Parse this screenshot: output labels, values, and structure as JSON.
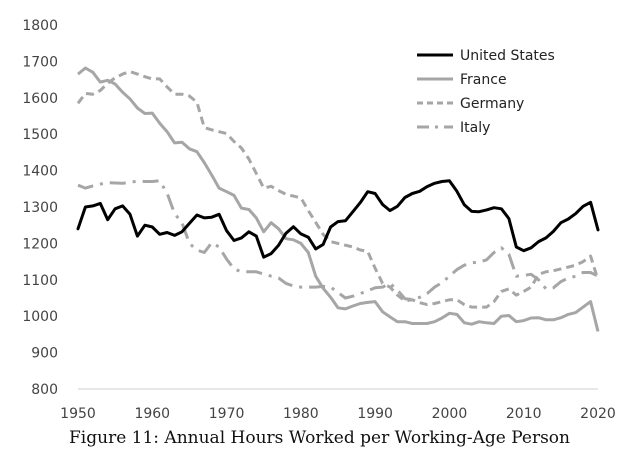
{
  "chart_data": {
    "type": "line",
    "title": "",
    "xlabel": "",
    "ylabel": "",
    "xlim": [
      1950,
      2020
    ],
    "ylim": [
      800,
      1800
    ],
    "xticks": [
      1950,
      1960,
      1970,
      1980,
      1990,
      2000,
      2010,
      2020
    ],
    "yticks": [
      800,
      900,
      1000,
      1100,
      1200,
      1300,
      1400,
      1500,
      1600,
      1700,
      1800
    ],
    "grid": false,
    "legend_position": "top-right",
    "x": [
      1950,
      1951,
      1952,
      1953,
      1954,
      1955,
      1956,
      1957,
      1958,
      1959,
      1960,
      1961,
      1962,
      1963,
      1964,
      1965,
      1966,
      1967,
      1968,
      1969,
      1970,
      1971,
      1972,
      1973,
      1974,
      1975,
      1976,
      1977,
      1978,
      1979,
      1980,
      1981,
      1982,
      1983,
      1984,
      1985,
      1986,
      1987,
      1988,
      1989,
      1990,
      1991,
      1992,
      1993,
      1994,
      1995,
      1996,
      1997,
      1998,
      1999,
      2000,
      2001,
      2002,
      2003,
      2004,
      2005,
      2006,
      2007,
      2008,
      2009,
      2010,
      2011,
      2012,
      2013,
      2014,
      2015,
      2016,
      2017,
      2018,
      2019,
      2020
    ],
    "series": [
      {
        "name": "United States",
        "color": "#000000",
        "dash": "solid",
        "values": [
          1240,
          1300,
          1303,
          1310,
          1265,
          1295,
          1303,
          1280,
          1220,
          1250,
          1245,
          1225,
          1230,
          1222,
          1232,
          1255,
          1278,
          1270,
          1272,
          1280,
          1235,
          1208,
          1215,
          1232,
          1220,
          1162,
          1172,
          1195,
          1228,
          1246,
          1226,
          1217,
          1185,
          1197,
          1245,
          1260,
          1262,
          1287,
          1312,
          1342,
          1337,
          1307,
          1290,
          1302,
          1326,
          1337,
          1343,
          1356,
          1365,
          1370,
          1372,
          1343,
          1306,
          1288,
          1287,
          1292,
          1298,
          1295,
          1268,
          1190,
          1180,
          1188,
          1205,
          1215,
          1233,
          1257,
          1267,
          1282,
          1302,
          1313,
          1237
        ]
      },
      {
        "name": "France",
        "color": "#a6a6a6",
        "dash": "solid",
        "values": [
          1665,
          1682,
          1670,
          1643,
          1648,
          1638,
          1615,
          1597,
          1572,
          1557,
          1558,
          1530,
          1507,
          1476,
          1478,
          1460,
          1452,
          1422,
          1388,
          1352,
          1342,
          1332,
          1297,
          1293,
          1270,
          1232,
          1257,
          1240,
          1213,
          1210,
          1200,
          1175,
          1110,
          1077,
          1052,
          1023,
          1020,
          1028,
          1035,
          1038,
          1040,
          1012,
          998,
          985,
          985,
          980,
          980,
          980,
          985,
          995,
          1008,
          1005,
          982,
          978,
          985,
          982,
          980,
          1000,
          1002,
          985,
          988,
          995,
          996,
          990,
          990,
          996,
          1005,
          1010,
          1025,
          1040,
          958
        ]
      },
      {
        "name": "Germany",
        "color": "#a6a6a6",
        "dash": "dashed",
        "values": [
          1585,
          1612,
          1610,
          1620,
          1640,
          1655,
          1665,
          1672,
          1665,
          1658,
          1652,
          1652,
          1630,
          1610,
          1610,
          1605,
          1588,
          1518,
          1512,
          1507,
          1502,
          1480,
          1462,
          1432,
          1392,
          1352,
          1357,
          1345,
          1335,
          1330,
          1325,
          1290,
          1258,
          1225,
          1205,
          1200,
          1195,
          1190,
          1182,
          1178,
          1132,
          1090,
          1080,
          1058,
          1042,
          1045,
          1037,
          1032,
          1035,
          1040,
          1045,
          1045,
          1032,
          1025,
          1025,
          1025,
          1040,
          1068,
          1075,
          1058,
          1068,
          1080,
          1115,
          1122,
          1125,
          1130,
          1135,
          1140,
          1150,
          1165,
          1100
        ]
      },
      {
        "name": "Italy",
        "color": "#a6a6a6",
        "dash": "dashdot",
        "values": [
          1360,
          1352,
          1358,
          1363,
          1367,
          1366,
          1365,
          1368,
          1371,
          1370,
          1370,
          1372,
          1338,
          1282,
          1257,
          1200,
          1182,
          1175,
          1202,
          1190,
          1157,
          1130,
          1122,
          1122,
          1122,
          1116,
          1110,
          1105,
          1090,
          1083,
          1080,
          1080,
          1080,
          1082,
          1080,
          1065,
          1050,
          1055,
          1062,
          1070,
          1078,
          1080,
          1090,
          1072,
          1048,
          1046,
          1052,
          1062,
          1080,
          1092,
          1110,
          1128,
          1140,
          1147,
          1148,
          1155,
          1175,
          1188,
          1170,
          1110,
          1112,
          1115,
          1100,
          1075,
          1078,
          1095,
          1105,
          1110,
          1120,
          1120,
          1110
        ]
      }
    ]
  },
  "caption": "Figure 11: Annual Hours Worked per Working-Age Person"
}
